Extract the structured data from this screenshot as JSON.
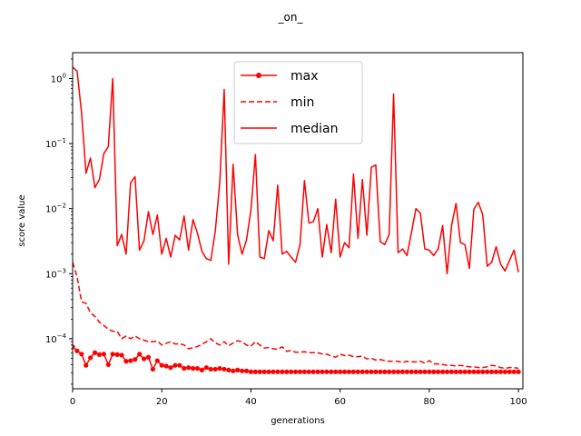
{
  "chart_data": {
    "type": "line",
    "title": "_on_",
    "xlabel": "generations",
    "ylabel": "score value",
    "xlim": [
      0,
      101
    ],
    "ylim": [
      1.7e-05,
      2.5
    ],
    "yscale": "log",
    "x_ticks": [
      0,
      20,
      40,
      60,
      80,
      100
    ],
    "x_tick_labels": [
      "0",
      "20",
      "40",
      "60",
      "80",
      "100"
    ],
    "y_ticks": [
      0.0001,
      0.001,
      0.01,
      0.1,
      1
    ],
    "y_tick_labels": [
      "10^-4",
      "10^-3",
      "10^-2",
      "10^-1",
      "10^0"
    ],
    "legend_position": "upper center",
    "grid": false,
    "color": "#ff0000",
    "series": [
      {
        "name": "max",
        "style": "solid-marker",
        "x": [
          0,
          1,
          2,
          3,
          4,
          5,
          6,
          7,
          8,
          9,
          10,
          11,
          12,
          13,
          14,
          15,
          16,
          17,
          18,
          19,
          20,
          21,
          22,
          23,
          24,
          25,
          26,
          27,
          28,
          29,
          30,
          31,
          32,
          33,
          34,
          35,
          36,
          37,
          38,
          39,
          40,
          41,
          42,
          43,
          44,
          45,
          46,
          47,
          48,
          49,
          50,
          51,
          52,
          53,
          54,
          55,
          56,
          57,
          58,
          59,
          60,
          61,
          62,
          63,
          64,
          65,
          66,
          67,
          68,
          69,
          70,
          71,
          72,
          73,
          74,
          75,
          76,
          77,
          78,
          79,
          80,
          81,
          82,
          83,
          84,
          85,
          86,
          87,
          88,
          89,
          90,
          91,
          92,
          93,
          94,
          95,
          96,
          97,
          98,
          99,
          100
        ],
        "values": [
          7.5e-05,
          6.5e-05,
          5.8e-05,
          3.9e-05,
          5.1e-05,
          6.1e-05,
          5.7e-05,
          5.8e-05,
          4e-05,
          5.8e-05,
          5.7e-05,
          5.6e-05,
          4.5e-05,
          4.6e-05,
          4.8e-05,
          5.8e-05,
          4.9e-05,
          5.2e-05,
          3.4e-05,
          4.6e-05,
          3.9e-05,
          3.8e-05,
          3.6e-05,
          3.9e-05,
          3.9e-05,
          3.5e-05,
          3.6e-05,
          3.5e-05,
          3.5e-05,
          3.3e-05,
          3.6e-05,
          3.4e-05,
          3.4e-05,
          3.5e-05,
          3.4e-05,
          3.3e-05,
          3.2e-05,
          3.3e-05,
          3.2e-05,
          3.2e-05,
          3.1e-05,
          3.1e-05,
          3.1e-05,
          3.1e-05,
          3.1e-05,
          3.1e-05,
          3.1e-05,
          3.1e-05,
          3.1e-05,
          3.1e-05,
          3.1e-05,
          3.1e-05,
          3.1e-05,
          3.1e-05,
          3.1e-05,
          3.1e-05,
          3.1e-05,
          3.1e-05,
          3.1e-05,
          3.1e-05,
          3.1e-05,
          3.1e-05,
          3.1e-05,
          3.1e-05,
          3.1e-05,
          3.1e-05,
          3.1e-05,
          3.1e-05,
          3.1e-05,
          3.1e-05,
          3.1e-05,
          3.1e-05,
          3.1e-05,
          3.1e-05,
          3.1e-05,
          3.1e-05,
          3.1e-05,
          3.1e-05,
          3.1e-05,
          3.1e-05,
          3.1e-05,
          3.1e-05,
          3.1e-05,
          3.1e-05,
          3.1e-05,
          3.1e-05,
          3.1e-05,
          3.1e-05,
          3.1e-05,
          3.1e-05,
          3.1e-05,
          3.1e-05,
          3.1e-05,
          3.1e-05,
          3.1e-05,
          3.1e-05,
          3.1e-05,
          3.1e-05,
          3.1e-05,
          3.1e-05,
          3.1e-05
        ]
      },
      {
        "name": "min",
        "style": "dashed",
        "x": [
          0,
          1,
          2,
          3,
          4,
          5,
          6,
          7,
          8,
          9,
          10,
          11,
          12,
          13,
          14,
          15,
          16,
          17,
          18,
          19,
          20,
          21,
          22,
          23,
          24,
          25,
          26,
          27,
          28,
          29,
          30,
          31,
          32,
          33,
          34,
          35,
          36,
          37,
          38,
          39,
          40,
          41,
          42,
          43,
          44,
          45,
          46,
          47,
          48,
          49,
          50,
          51,
          52,
          53,
          54,
          55,
          56,
          57,
          58,
          59,
          60,
          61,
          62,
          63,
          64,
          65,
          66,
          67,
          68,
          69,
          70,
          71,
          72,
          73,
          74,
          75,
          76,
          77,
          78,
          79,
          80,
          81,
          82,
          83,
          84,
          85,
          86,
          87,
          88,
          89,
          90,
          91,
          92,
          93,
          94,
          95,
          96,
          97,
          98,
          99,
          100
        ],
        "values": [
          0.0015,
          0.0009,
          0.00037,
          0.00035,
          0.00025,
          0.00022,
          0.00018,
          0.00016,
          0.00014,
          0.00013,
          0.00013,
          0.0001,
          0.00011,
          0.0001,
          0.00011,
          0.0001,
          9.5e-05,
          9e-05,
          9e-05,
          9.2e-05,
          8e-05,
          8.5e-05,
          9e-05,
          8.3e-05,
          8.4e-05,
          8e-05,
          7e-05,
          7.3e-05,
          7.6e-05,
          8.2e-05,
          9e-05,
          0.0001,
          8.6e-05,
          8e-05,
          9e-05,
          7.8e-05,
          8.6e-05,
          9.3e-05,
          9e-05,
          8e-05,
          7.7e-05,
          9e-05,
          8e-05,
          7.2e-05,
          7.3e-05,
          7e-05,
          6.9e-05,
          7.5e-05,
          6.4e-05,
          6.6e-05,
          6.2e-05,
          6.2e-05,
          6.3e-05,
          6.1e-05,
          6.1e-05,
          6.1e-05,
          5.8e-05,
          5.8e-05,
          5.4e-05,
          5.2e-05,
          5.8e-05,
          5.5e-05,
          5.6e-05,
          5.3e-05,
          5.3e-05,
          5.4e-05,
          4.9e-05,
          5e-05,
          4.7e-05,
          4.8e-05,
          4.6e-05,
          4.5e-05,
          4.5e-05,
          4.5e-05,
          4.3e-05,
          4.5e-05,
          4.4e-05,
          4.4e-05,
          4.5e-05,
          4.2e-05,
          4.6e-05,
          4.1e-05,
          4.1e-05,
          4e-05,
          3.9e-05,
          3.9e-05,
          3.8e-05,
          3.9e-05,
          3.8e-05,
          3.7e-05,
          3.7e-05,
          3.6e-05,
          3.6e-05,
          3.7e-05,
          3.9e-05,
          3.8e-05,
          3.6e-05,
          3.5e-05,
          3.6e-05,
          3.6e-05,
          3.5e-05
        ]
      },
      {
        "name": "median",
        "style": "solid",
        "x": [
          0,
          1,
          2,
          3,
          4,
          5,
          6,
          7,
          8,
          9,
          10,
          11,
          12,
          13,
          14,
          15,
          16,
          17,
          18,
          19,
          20,
          21,
          22,
          23,
          24,
          25,
          26,
          27,
          28,
          29,
          30,
          31,
          32,
          33,
          34,
          35,
          36,
          37,
          38,
          39,
          40,
          41,
          42,
          43,
          44,
          45,
          46,
          47,
          48,
          49,
          50,
          51,
          52,
          53,
          54,
          55,
          56,
          57,
          58,
          59,
          60,
          61,
          62,
          63,
          64,
          65,
          66,
          67,
          68,
          69,
          70,
          71,
          72,
          73,
          74,
          75,
          76,
          77,
          78,
          79,
          80,
          81,
          82,
          83,
          84,
          85,
          86,
          87,
          88,
          89,
          90,
          91,
          92,
          93,
          94,
          95,
          96,
          97,
          98,
          99,
          100
        ],
        "values": [
          1.5,
          1.3,
          0.3,
          0.035,
          0.06,
          0.021,
          0.028,
          0.07,
          0.09,
          1.0,
          0.0027,
          0.004,
          0.002,
          0.025,
          0.031,
          0.0023,
          0.0032,
          0.009,
          0.004,
          0.008,
          0.002,
          0.0035,
          0.0018,
          0.0039,
          0.0033,
          0.0077,
          0.0023,
          0.0068,
          0.0042,
          0.0022,
          0.0017,
          0.0016,
          0.0045,
          0.025,
          0.68,
          0.0014,
          0.048,
          0.004,
          0.002,
          0.0033,
          0.0095,
          0.068,
          0.0018,
          0.0017,
          0.0046,
          0.0032,
          0.023,
          0.002,
          0.0022,
          0.0018,
          0.0015,
          0.0028,
          0.027,
          0.006,
          0.0063,
          0.01,
          0.0018,
          0.0057,
          0.0021,
          0.014,
          0.0018,
          0.003,
          0.0025,
          0.034,
          0.0035,
          0.028,
          0.0039,
          0.043,
          0.047,
          0.0031,
          0.0028,
          0.004,
          0.58,
          0.0021,
          0.0024,
          0.0019,
          0.0043,
          0.01,
          0.0085,
          0.0024,
          0.0023,
          0.0019,
          0.0024,
          0.0055,
          0.001,
          0.0055,
          0.012,
          0.003,
          0.0028,
          0.0012,
          0.0098,
          0.0125,
          0.008,
          0.0013,
          0.0015,
          0.0026,
          0.0014,
          0.0011,
          0.0016,
          0.0023,
          0.00105
        ]
      }
    ]
  }
}
